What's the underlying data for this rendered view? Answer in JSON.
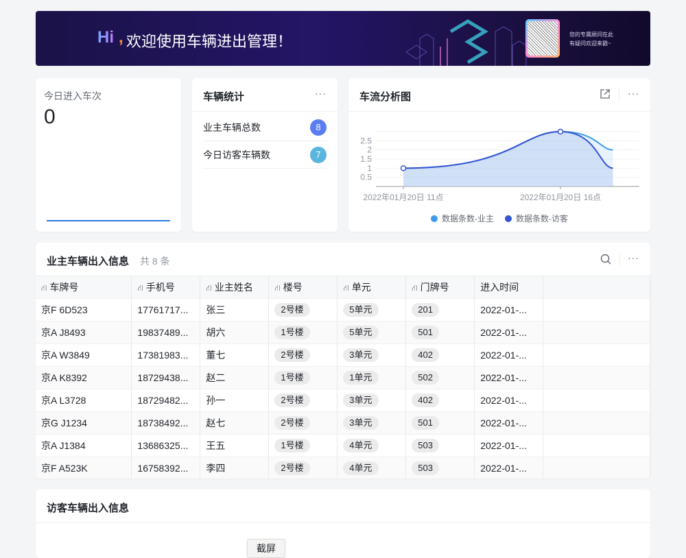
{
  "banner": {
    "hi": "Hi",
    "comma": ",",
    "welcome": "欢迎使用车辆进出管理！",
    "advisor_line1": "您的专属顾问在此",
    "advisor_line2": "有疑问欢迎来戳~"
  },
  "today_entries": {
    "label": "今日进入车次",
    "value": "0"
  },
  "vehicle_stats": {
    "title": "车辆统计",
    "items": [
      {
        "label": "业主车辆总数",
        "count": "8",
        "color": "#5b7df2"
      },
      {
        "label": "今日访客车辆数",
        "count": "7",
        "color": "#5ab6de"
      }
    ]
  },
  "traffic_chart": {
    "title": "车流分析图"
  },
  "chart_data": {
    "type": "area",
    "x": [
      11,
      16,
      17.67
    ],
    "x_tick_labels": [
      {
        "x": 11,
        "label": "2022年01月20日 11点"
      },
      {
        "x": 16,
        "label": "2022年01月20日 16点"
      }
    ],
    "y_tick_labels": [
      "0.5",
      "1",
      "1.5",
      "2",
      "2.5"
    ],
    "ylim": [
      0,
      3
    ],
    "grid": true,
    "legend_position": "bottom",
    "series": [
      {
        "name": "数据条数-业主",
        "values": [
          1,
          3,
          2
        ],
        "color": "#3d9be9"
      },
      {
        "name": "数据条数-访客",
        "values": [
          1,
          3,
          1
        ],
        "color": "#3454d1"
      }
    ]
  },
  "owner_table": {
    "title": "业主车辆出入信息",
    "count_text": "共 8 条",
    "columns": [
      "车牌号",
      "手机号",
      "业主姓名",
      "楼号",
      "单元",
      "门牌号",
      "进入时间"
    ],
    "rows": [
      [
        "京F 6D523",
        "17761717...",
        "张三",
        "2号楼",
        "5单元",
        "201",
        "2022-01-..."
      ],
      [
        "京A J8493",
        "19837489...",
        "胡六",
        "1号楼",
        "5单元",
        "501",
        "2022-01-..."
      ],
      [
        "京A W3849",
        "17381983...",
        "董七",
        "2号楼",
        "3单元",
        "402",
        "2022-01-..."
      ],
      [
        "京A K8392",
        "18729438...",
        "赵二",
        "1号楼",
        "1单元",
        "502",
        "2022-01-..."
      ],
      [
        "京A L3728",
        "18729482...",
        "孙一",
        "2号楼",
        "3单元",
        "402",
        "2022-01-..."
      ],
      [
        "京G J1234",
        "18738492...",
        "赵七",
        "2号楼",
        "3单元",
        "501",
        "2022-01-..."
      ],
      [
        "京A J1384",
        "13686325...",
        "王五",
        "1号楼",
        "4单元",
        "503",
        "2022-01-..."
      ],
      [
        "京F A523K",
        "16758392...",
        "李四",
        "2号楼",
        "4单元",
        "503",
        "2022-01-..."
      ]
    ]
  },
  "visitor_table": {
    "title": "访客车辆出入信息",
    "screenshot_button": "截屏"
  }
}
